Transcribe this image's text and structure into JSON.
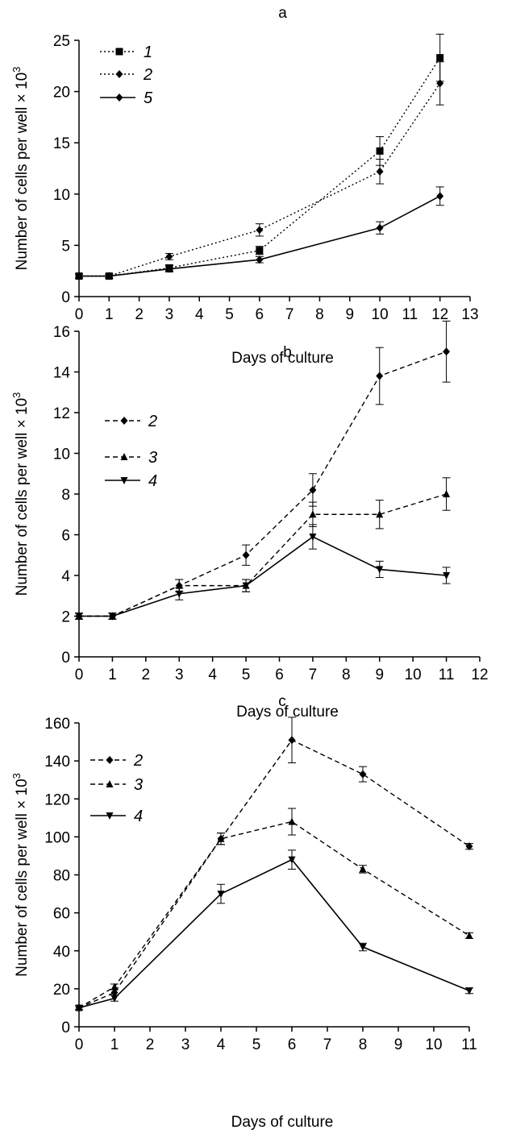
{
  "chart_data": [
    {
      "type": "line",
      "title": "a",
      "xlabel": "Days of culture",
      "ylabel": "Number of cells per well × 10³",
      "xlim": [
        0,
        13
      ],
      "ylim": [
        0,
        25
      ],
      "xticks": [
        0,
        1,
        2,
        3,
        4,
        5,
        6,
        7,
        8,
        9,
        10,
        11,
        12,
        13
      ],
      "yticks": [
        0,
        5,
        10,
        15,
        20,
        25
      ],
      "grid": false,
      "legend_position": "top-left",
      "series": [
        {
          "name": "1",
          "marker": "square",
          "line": "dotted",
          "x": [
            0,
            1,
            3,
            6,
            10,
            12
          ],
          "y": [
            2,
            2,
            2.8,
            4.5,
            14.2,
            23.3
          ],
          "err": [
            0.2,
            0.2,
            0.3,
            0.4,
            1.4,
            2.3
          ]
        },
        {
          "name": "2",
          "marker": "diamond",
          "line": "dotted",
          "x": [
            0,
            1,
            3,
            6,
            10,
            12
          ],
          "y": [
            2,
            2,
            3.9,
            6.5,
            12.2,
            20.8
          ],
          "err": [
            0.2,
            0.2,
            0.3,
            0.6,
            1.2,
            2.1
          ]
        },
        {
          "name": "5",
          "marker": "diamond",
          "line": "solid",
          "x": [
            0,
            1,
            3,
            6,
            10,
            12
          ],
          "y": [
            2,
            2,
            2.7,
            3.6,
            6.7,
            9.8
          ],
          "err": [
            0.2,
            0.2,
            0.3,
            0.3,
            0.6,
            0.9
          ]
        }
      ]
    },
    {
      "type": "line",
      "title": "b",
      "xlabel": "Days of culture",
      "ylabel": "Number of cells per well × 10³",
      "xlim": [
        0,
        12
      ],
      "ylim": [
        0,
        16
      ],
      "xticks": [
        0,
        1,
        2,
        3,
        4,
        5,
        6,
        7,
        8,
        9,
        10,
        11,
        12
      ],
      "yticks": [
        0,
        2,
        4,
        6,
        8,
        10,
        12,
        14,
        16
      ],
      "grid": false,
      "legend_position": "top-left",
      "series": [
        {
          "name": "2",
          "marker": "diamond",
          "line": "dashed",
          "x": [
            0,
            1,
            3,
            5,
            7,
            9,
            11
          ],
          "y": [
            2,
            2,
            3.5,
            5,
            8.2,
            13.8,
            15
          ],
          "err": [
            0.15,
            0.15,
            0.3,
            0.5,
            0.8,
            1.4,
            1.5
          ]
        },
        {
          "name": "3",
          "marker": "triangle-up",
          "line": "dashed",
          "x": [
            0,
            1,
            3,
            5,
            7,
            9,
            11
          ],
          "y": [
            2,
            2,
            3.5,
            3.5,
            7,
            7,
            8
          ],
          "err": [
            0.15,
            0.15,
            0.3,
            0.3,
            0.6,
            0.7,
            0.8
          ]
        },
        {
          "name": "4",
          "marker": "triangle-down",
          "line": "solid",
          "x": [
            0,
            1,
            3,
            5,
            7,
            9,
            11
          ],
          "y": [
            2,
            2,
            3.1,
            3.5,
            5.9,
            4.3,
            4
          ],
          "err": [
            0.15,
            0.15,
            0.3,
            0.3,
            0.6,
            0.4,
            0.4
          ]
        }
      ]
    },
    {
      "type": "line",
      "title": "c",
      "xlabel": "Days of culture",
      "ylabel": "Number of cells per well × 10³",
      "xlim": [
        0,
        11
      ],
      "ylim": [
        0,
        160
      ],
      "xticks": [
        0,
        1,
        2,
        3,
        4,
        5,
        6,
        7,
        8,
        9,
        10,
        11
      ],
      "yticks": [
        0,
        20,
        40,
        60,
        80,
        100,
        120,
        140,
        160
      ],
      "grid": false,
      "legend_position": "top-left",
      "series": [
        {
          "name": "2",
          "marker": "diamond",
          "line": "dashed",
          "x": [
            0,
            1,
            4,
            6,
            8,
            11
          ],
          "y": [
            10,
            18,
            99,
            151,
            133,
            95
          ],
          "err": [
            1,
            1.5,
            3,
            12,
            4,
            1.5
          ]
        },
        {
          "name": "3",
          "marker": "triangle-up",
          "line": "dashed",
          "x": [
            0,
            1,
            4,
            6,
            8,
            11
          ],
          "y": [
            10,
            21,
            99,
            108,
            83,
            48
          ],
          "err": [
            1,
            1.5,
            3,
            7,
            2,
            1.5
          ]
        },
        {
          "name": "4",
          "marker": "triangle-down",
          "line": "solid",
          "x": [
            0,
            1,
            4,
            6,
            8,
            11
          ],
          "y": [
            10,
            15,
            70,
            88,
            42,
            19
          ],
          "err": [
            1,
            1.5,
            5,
            5,
            2,
            1.5
          ]
        }
      ]
    }
  ]
}
